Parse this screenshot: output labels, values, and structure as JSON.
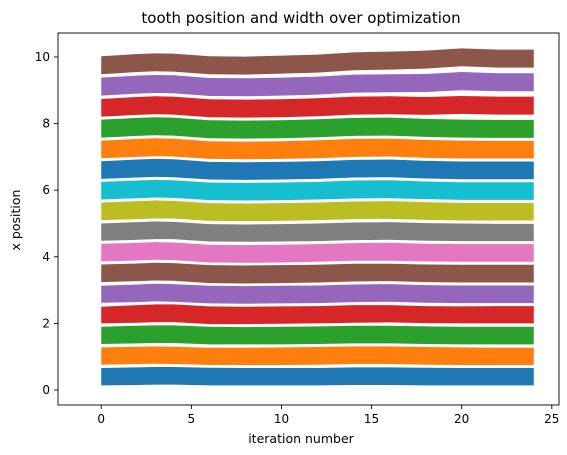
{
  "chart_data": {
    "type": "area",
    "title": "tooth position and width over optimization",
    "xlabel": "iteration number",
    "ylabel": "x position",
    "xlim": [
      -2.4,
      25.4
    ],
    "ylim": [
      -0.45,
      10.72
    ],
    "xticks": [
      0,
      5,
      10,
      15,
      20,
      25
    ],
    "yticks": [
      0,
      2,
      4,
      6,
      8,
      10
    ],
    "grid": false,
    "legend": "none",
    "x": [
      0,
      2,
      3,
      4,
      6,
      8,
      10,
      12,
      14,
      16,
      18,
      20,
      22,
      24
    ],
    "series": [
      {
        "color": "#1f77b4",
        "lower": [
          0.14,
          0.15,
          0.16,
          0.16,
          0.14,
          0.14,
          0.14,
          0.14,
          0.15,
          0.15,
          0.14,
          0.14,
          0.14,
          0.14
        ],
        "upper": [
          0.66,
          0.68,
          0.69,
          0.69,
          0.67,
          0.66,
          0.66,
          0.66,
          0.68,
          0.68,
          0.67,
          0.66,
          0.66,
          0.66
        ]
      },
      {
        "color": "#ff7f0e",
        "lower": [
          0.76,
          0.78,
          0.79,
          0.78,
          0.75,
          0.75,
          0.75,
          0.76,
          0.78,
          0.78,
          0.76,
          0.75,
          0.75,
          0.75
        ],
        "upper": [
          1.28,
          1.3,
          1.31,
          1.3,
          1.27,
          1.27,
          1.28,
          1.29,
          1.31,
          1.31,
          1.29,
          1.28,
          1.27,
          1.27
        ]
      },
      {
        "color": "#2ca02c",
        "lower": [
          1.38,
          1.4,
          1.41,
          1.41,
          1.37,
          1.37,
          1.37,
          1.38,
          1.4,
          1.4,
          1.38,
          1.37,
          1.37,
          1.37
        ],
        "upper": [
          1.9,
          1.93,
          1.94,
          1.94,
          1.9,
          1.89,
          1.9,
          1.91,
          1.93,
          1.93,
          1.91,
          1.9,
          1.9,
          1.9
        ]
      },
      {
        "color": "#d62728",
        "lower": [
          2.0,
          2.02,
          2.04,
          2.04,
          1.98,
          1.98,
          1.99,
          2.0,
          2.02,
          2.03,
          2.01,
          2.0,
          2.0,
          2.0
        ],
        "upper": [
          2.5,
          2.55,
          2.57,
          2.57,
          2.51,
          2.5,
          2.51,
          2.52,
          2.55,
          2.55,
          2.52,
          2.51,
          2.52,
          2.52
        ]
      },
      {
        "color": "#9467bd",
        "lower": [
          2.62,
          2.64,
          2.66,
          2.65,
          2.6,
          2.59,
          2.6,
          2.61,
          2.64,
          2.65,
          2.62,
          2.61,
          2.61,
          2.61
        ],
        "upper": [
          3.13,
          3.17,
          3.19,
          3.18,
          3.13,
          3.12,
          3.13,
          3.14,
          3.17,
          3.18,
          3.15,
          3.14,
          3.14,
          3.14
        ]
      },
      {
        "color": "#8c564b",
        "lower": [
          3.24,
          3.27,
          3.29,
          3.28,
          3.21,
          3.2,
          3.21,
          3.23,
          3.26,
          3.27,
          3.24,
          3.23,
          3.23,
          3.23
        ],
        "upper": [
          3.77,
          3.8,
          3.82,
          3.81,
          3.75,
          3.74,
          3.75,
          3.76,
          3.79,
          3.79,
          3.77,
          3.76,
          3.76,
          3.76
        ]
      },
      {
        "color": "#e377c2",
        "lower": [
          3.86,
          3.89,
          3.91,
          3.9,
          3.83,
          3.82,
          3.83,
          3.85,
          3.88,
          3.88,
          3.86,
          3.85,
          3.85,
          3.85
        ],
        "upper": [
          4.39,
          4.42,
          4.44,
          4.43,
          4.36,
          4.35,
          4.36,
          4.38,
          4.41,
          4.42,
          4.39,
          4.38,
          4.38,
          4.38
        ]
      },
      {
        "color": "#7f7f7f",
        "lower": [
          4.48,
          4.51,
          4.53,
          4.53,
          4.46,
          4.45,
          4.46,
          4.47,
          4.5,
          4.51,
          4.48,
          4.47,
          4.47,
          4.47
        ],
        "upper": [
          5.0,
          5.04,
          5.06,
          5.05,
          4.98,
          4.97,
          4.98,
          5.0,
          5.03,
          5.04,
          5.01,
          5.0,
          4.99,
          4.99
        ]
      },
      {
        "color": "#bcbd22",
        "lower": [
          5.1,
          5.13,
          5.15,
          5.15,
          5.08,
          5.07,
          5.08,
          5.1,
          5.13,
          5.14,
          5.11,
          5.09,
          5.09,
          5.09
        ],
        "upper": [
          5.63,
          5.67,
          5.69,
          5.68,
          5.61,
          5.6,
          5.61,
          5.63,
          5.66,
          5.67,
          5.64,
          5.62,
          5.62,
          5.62
        ]
      },
      {
        "color": "#17becf",
        "lower": [
          5.72,
          5.76,
          5.78,
          5.77,
          5.7,
          5.69,
          5.7,
          5.72,
          5.75,
          5.76,
          5.73,
          5.71,
          5.71,
          5.71
        ],
        "upper": [
          6.25,
          6.29,
          6.31,
          6.3,
          6.23,
          6.22,
          6.23,
          6.25,
          6.29,
          6.3,
          6.26,
          6.24,
          6.24,
          6.24
        ]
      },
      {
        "color": "#1f77b4",
        "lower": [
          6.34,
          6.38,
          6.4,
          6.39,
          6.32,
          6.31,
          6.32,
          6.34,
          6.38,
          6.39,
          6.35,
          6.33,
          6.33,
          6.33
        ],
        "upper": [
          6.87,
          6.92,
          6.94,
          6.93,
          6.85,
          6.84,
          6.85,
          6.87,
          6.91,
          6.92,
          6.88,
          6.86,
          6.86,
          6.86
        ]
      },
      {
        "color": "#ff7f0e",
        "lower": [
          6.96,
          7.0,
          7.02,
          7.01,
          6.94,
          6.93,
          6.94,
          6.96,
          7.0,
          7.01,
          6.97,
          6.95,
          6.95,
          6.95
        ],
        "upper": [
          7.49,
          7.54,
          7.56,
          7.55,
          7.47,
          7.46,
          7.47,
          7.5,
          7.54,
          7.55,
          7.51,
          7.49,
          7.48,
          7.48
        ]
      },
      {
        "color": "#2ca02c",
        "lower": [
          7.58,
          7.63,
          7.65,
          7.64,
          7.56,
          7.55,
          7.56,
          7.59,
          7.63,
          7.64,
          7.6,
          7.58,
          7.57,
          7.57
        ],
        "upper": [
          8.12,
          8.17,
          8.19,
          8.18,
          8.1,
          8.09,
          8.1,
          8.13,
          8.17,
          8.18,
          8.14,
          8.12,
          8.11,
          8.11
        ]
      },
      {
        "color": "#d62728",
        "lower": [
          8.21,
          8.26,
          8.28,
          8.27,
          8.19,
          8.18,
          8.19,
          8.22,
          8.27,
          8.28,
          8.26,
          8.29,
          8.27,
          8.27
        ],
        "upper": [
          8.74,
          8.8,
          8.82,
          8.81,
          8.73,
          8.72,
          8.73,
          8.76,
          8.81,
          8.82,
          8.8,
          8.83,
          8.81,
          8.81
        ]
      },
      {
        "color": "#9467bd",
        "lower": [
          8.84,
          8.9,
          8.92,
          8.91,
          8.83,
          8.82,
          8.84,
          8.87,
          8.93,
          8.94,
          8.95,
          9.0,
          8.97,
          8.97
        ],
        "upper": [
          9.38,
          9.44,
          9.46,
          9.45,
          9.37,
          9.36,
          9.38,
          9.41,
          9.47,
          9.48,
          9.49,
          9.55,
          9.51,
          9.51
        ]
      },
      {
        "color": "#8c564b",
        "lower": [
          9.48,
          9.55,
          9.57,
          9.56,
          9.48,
          9.47,
          9.5,
          9.53,
          9.6,
          9.62,
          9.65,
          9.72,
          9.68,
          9.68
        ],
        "upper": [
          10.02,
          10.09,
          10.11,
          10.1,
          10.02,
          10.01,
          10.04,
          10.07,
          10.14,
          10.16,
          10.19,
          10.26,
          10.22,
          10.22
        ]
      }
    ]
  }
}
